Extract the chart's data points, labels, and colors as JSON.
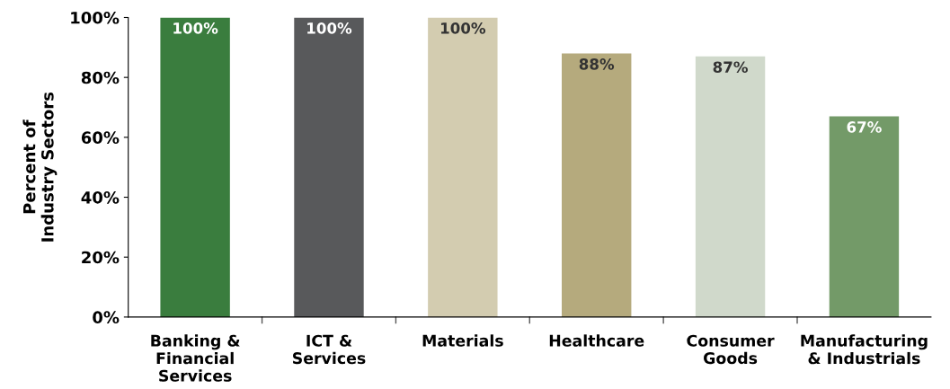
{
  "chart_data": {
    "type": "bar",
    "ylabel": "Percent of\nIndustry Sectors",
    "categories": [
      "Banking &\nFinancial\nServices",
      "ICT &\nServices",
      "Materials",
      "Healthcare",
      "Consumer\nGoods",
      "Manufacturing\n& Industrials"
    ],
    "values": [
      100,
      100,
      100,
      88,
      87,
      67
    ],
    "colors": [
      "#3a7d3e",
      "#58595b",
      "#d3ccb0",
      "#b5aa7d",
      "#d0d9cb",
      "#739a68"
    ],
    "value_labels": [
      "100%",
      "100%",
      "100%",
      "88%",
      "87%",
      "67%"
    ],
    "ylim": [
      0,
      100
    ],
    "yticks": [
      {
        "value": 0,
        "label": "0%"
      },
      {
        "value": 20,
        "label": "20%"
      },
      {
        "value": 40,
        "label": "40%"
      },
      {
        "value": 60,
        "label": "60%"
      },
      {
        "value": 80,
        "label": "80%"
      },
      {
        "value": 100,
        "label": "100%"
      }
    ],
    "grid": false,
    "legend": false
  }
}
